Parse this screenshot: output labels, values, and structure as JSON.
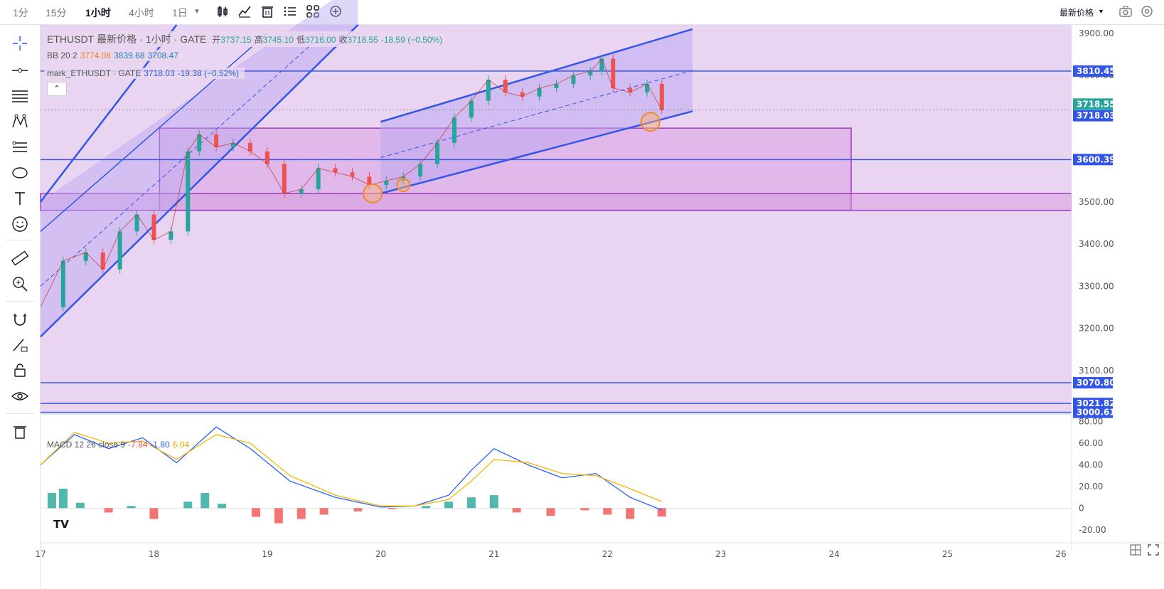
{
  "toolbar": {
    "timeframes": [
      "1分",
      "15分",
      "1小时",
      "4小时",
      "1日"
    ],
    "active_timeframe": "1小时",
    "price_type": "最新价格"
  },
  "legend": {
    "main": {
      "symbol": "ETHUSDT",
      "type": "最新价格",
      "interval": "1小时",
      "exchange": "GATE",
      "open_label": "开",
      "open": "3737.15",
      "high_label": "高",
      "high": "3745.10",
      "low_label": "低",
      "low": "3716.00",
      "close_label": "收",
      "close": "3718.55",
      "change": "-18.59 (−0.50%)"
    },
    "bb": {
      "label": "BB 20 2",
      "basis": "3774.08",
      "upper": "3839.68",
      "lower": "3708.47"
    },
    "mark": {
      "label": "mark_ETHUSDT · GATE",
      "value": "3718.03",
      "change": "-19.38 (−0.52%)"
    },
    "macd": {
      "label": "MACD 12 26 close 9",
      "histogram": "-7.84",
      "macd": "-1.80",
      "signal": "6.04"
    }
  },
  "colors": {
    "up": "#26a69a",
    "down": "#ef5350",
    "macd_line": "#2962ff",
    "signal_line": "#f5b800",
    "bb_fill": "#b9a6f0",
    "zone": "#d59ae0",
    "hline": "#3356e8"
  },
  "chart_data": [
    {
      "type": "candlestick",
      "title": "ETHUSDT 最新价格 · 1小时 · GATE",
      "ylim": [
        3000,
        3920
      ],
      "y_ticks": [
        3100,
        3200,
        3300,
        3400,
        3500,
        3600,
        3700,
        3800,
        3900
      ],
      "y_tick_labels": [
        "3100.00",
        "3200.00",
        "3300.00",
        "3400.00",
        "3500.00",
        "3600.00",
        "3700.00",
        "3800.00",
        "3900.00"
      ],
      "x_ticks": [
        17,
        18,
        19,
        20,
        21,
        22,
        23,
        24,
        25,
        26
      ],
      "x_tick_labels": [
        "17",
        "18",
        "19",
        "20",
        "21",
        "22",
        "23",
        "24",
        "25",
        "26"
      ],
      "xlim": [
        17,
        26
      ],
      "horizontal_lines": [
        {
          "price": 3810.45,
          "label": "3810.45"
        },
        {
          "price": 3600.39,
          "label": "3600.39"
        },
        {
          "price": 3070.8,
          "label": "3070.80"
        },
        {
          "price": 3021.82,
          "label": "3021.82"
        },
        {
          "price": 3000.61,
          "label": "3000.61"
        }
      ],
      "price_labels": [
        {
          "price": 3718.55,
          "label": "3718.55",
          "color": "#26a69a"
        },
        {
          "price": 3718.03,
          "label": "3718.03",
          "color": "#3356e8"
        }
      ],
      "close_series": [
        [
          17.0,
          3250
        ],
        [
          17.2,
          3360
        ],
        [
          17.4,
          3380
        ],
        [
          17.55,
          3340
        ],
        [
          17.7,
          3430
        ],
        [
          17.85,
          3470
        ],
        [
          18.0,
          3410
        ],
        [
          18.15,
          3430
        ],
        [
          18.3,
          3620
        ],
        [
          18.4,
          3660
        ],
        [
          18.55,
          3630
        ],
        [
          18.7,
          3640
        ],
        [
          18.85,
          3620
        ],
        [
          19.0,
          3590
        ],
        [
          19.15,
          3520
        ],
        [
          19.3,
          3530
        ],
        [
          19.45,
          3580
        ],
        [
          19.6,
          3570
        ],
        [
          19.75,
          3560
        ],
        [
          19.9,
          3540
        ],
        [
          20.05,
          3550
        ],
        [
          20.2,
          3560
        ],
        [
          20.35,
          3590
        ],
        [
          20.5,
          3640
        ],
        [
          20.65,
          3700
        ],
        [
          20.8,
          3740
        ],
        [
          20.95,
          3790
        ],
        [
          21.1,
          3760
        ],
        [
          21.25,
          3750
        ],
        [
          21.4,
          3770
        ],
        [
          21.55,
          3780
        ],
        [
          21.7,
          3800
        ],
        [
          21.85,
          3810
        ],
        [
          21.95,
          3840
        ],
        [
          22.05,
          3770
        ],
        [
          22.2,
          3760
        ],
        [
          22.35,
          3780
        ],
        [
          22.48,
          3718.55
        ]
      ],
      "zones": [
        {
          "x0": 18.05,
          "x1": 24.15,
          "y0": 3480,
          "y1": 3675
        },
        {
          "x0": 17.0,
          "x1": 26.1,
          "y0": 3480,
          "y1": 3520
        }
      ]
    },
    {
      "type": "line",
      "title": "MACD 12 26 close 9",
      "ylim": [
        -30,
        85
      ],
      "y_ticks": [
        -20,
        0,
        20,
        40,
        60,
        80
      ],
      "y_tick_labels": [
        "-20.00",
        "0",
        "20.00",
        "40.00",
        "60.00",
        "80.00"
      ],
      "macd": [
        [
          17.0,
          40
        ],
        [
          17.3,
          68
        ],
        [
          17.6,
          55
        ],
        [
          17.9,
          65
        ],
        [
          18.2,
          42
        ],
        [
          18.55,
          75
        ],
        [
          18.85,
          55
        ],
        [
          19.2,
          25
        ],
        [
          19.6,
          10
        ],
        [
          20.0,
          1
        ],
        [
          20.3,
          2
        ],
        [
          20.6,
          12
        ],
        [
          20.8,
          35
        ],
        [
          21.0,
          55
        ],
        [
          21.3,
          40
        ],
        [
          21.6,
          28
        ],
        [
          21.9,
          32
        ],
        [
          22.2,
          10
        ],
        [
          22.48,
          -1.8
        ]
      ],
      "signal": [
        [
          17.0,
          40
        ],
        [
          17.3,
          70
        ],
        [
          17.6,
          60
        ],
        [
          17.9,
          62
        ],
        [
          18.2,
          45
        ],
        [
          18.55,
          68
        ],
        [
          18.85,
          60
        ],
        [
          19.2,
          30
        ],
        [
          19.6,
          12
        ],
        [
          20.0,
          2
        ],
        [
          20.3,
          2
        ],
        [
          20.6,
          8
        ],
        [
          20.8,
          25
        ],
        [
          21.0,
          45
        ],
        [
          21.3,
          42
        ],
        [
          21.6,
          32
        ],
        [
          21.9,
          30
        ],
        [
          22.2,
          18
        ],
        [
          22.48,
          6.04
        ]
      ],
      "histogram": [
        [
          17.1,
          14
        ],
        [
          17.2,
          18
        ],
        [
          17.35,
          5
        ],
        [
          17.6,
          -4
        ],
        [
          17.8,
          2
        ],
        [
          18.0,
          -10
        ],
        [
          18.3,
          6
        ],
        [
          18.45,
          14
        ],
        [
          18.6,
          4
        ],
        [
          18.9,
          -8
        ],
        [
          19.1,
          -14
        ],
        [
          19.3,
          -10
        ],
        [
          19.5,
          -6
        ],
        [
          19.8,
          -3
        ],
        [
          20.1,
          -1
        ],
        [
          20.4,
          2
        ],
        [
          20.6,
          6
        ],
        [
          20.8,
          10
        ],
        [
          21.0,
          12
        ],
        [
          21.2,
          -4
        ],
        [
          21.5,
          -7
        ],
        [
          21.8,
          -2
        ],
        [
          22.0,
          -6
        ],
        [
          22.2,
          -10
        ],
        [
          22.48,
          -7.84
        ]
      ]
    }
  ]
}
